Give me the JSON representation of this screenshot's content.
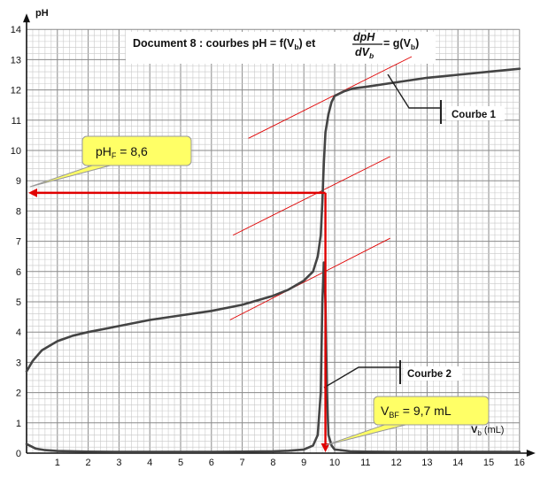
{
  "title": {
    "prefix": "Document 8 : courbes pH = f(V",
    "mid": ") et ",
    "frac_num": "dpH",
    "frac_den": "dV",
    "eq": " = g(V",
    "close": ")",
    "sub_b": "b"
  },
  "colors": {
    "grid_major": "#8a8a8a",
    "grid_minor": "#c8c8c8",
    "curve": "#444444",
    "red": "#e00000",
    "note_fill": "#ffff66",
    "note_border": "#999999"
  },
  "chart_data": {
    "type": "line",
    "xlabel": "Vb (mL)",
    "ylabel": "pH",
    "xlim": [
      0,
      16
    ],
    "ylim": [
      0,
      14
    ],
    "x_ticks": [
      1,
      2,
      3,
      4,
      5,
      6,
      7,
      8,
      9,
      10,
      11,
      12,
      13,
      14,
      15,
      16
    ],
    "y_ticks": [
      0,
      1,
      2,
      3,
      4,
      5,
      6,
      7,
      8,
      9,
      10,
      11,
      12,
      13,
      14
    ],
    "grid": true,
    "series": [
      {
        "name": "Courbe 1",
        "x": [
          0,
          0.2,
          0.5,
          1,
          1.5,
          2,
          3,
          4,
          5,
          6,
          7,
          8,
          8.5,
          9,
          9.3,
          9.45,
          9.55,
          9.6,
          9.65,
          9.7,
          9.8,
          9.9,
          10,
          10.3,
          10.6,
          11,
          12,
          13,
          14,
          15,
          16
        ],
        "y": [
          2.7,
          3.05,
          3.4,
          3.7,
          3.88,
          4.0,
          4.2,
          4.4,
          4.55,
          4.7,
          4.9,
          5.2,
          5.4,
          5.7,
          6.0,
          6.5,
          7.2,
          8.3,
          9.6,
          10.6,
          11.2,
          11.6,
          11.8,
          11.95,
          12.05,
          12.1,
          12.25,
          12.4,
          12.5,
          12.6,
          12.7
        ]
      },
      {
        "name": "Courbe 2",
        "x": [
          0,
          0.3,
          0.6,
          1,
          2,
          3,
          4,
          5,
          6,
          7,
          8,
          8.5,
          9,
          9.3,
          9.45,
          9.55,
          9.6,
          9.65,
          9.7,
          9.75,
          9.8,
          9.9,
          10,
          10.5,
          11,
          12,
          13,
          14,
          15,
          16
        ],
        "y": [
          0.3,
          0.15,
          0.1,
          0.07,
          0.05,
          0.04,
          0.04,
          0.04,
          0.04,
          0.05,
          0.06,
          0.08,
          0.12,
          0.25,
          0.6,
          2.0,
          5.0,
          6.3,
          5.0,
          2.0,
          0.6,
          0.25,
          0.12,
          0.06,
          0.05,
          0.04,
          0.04,
          0.04,
          0.04,
          0.04
        ]
      }
    ],
    "tangents": [
      {
        "x": [
          6.6,
          11.8
        ],
        "y": [
          4.4,
          7.1
        ]
      },
      {
        "x": [
          6.7,
          11.8
        ],
        "y": [
          7.2,
          9.8
        ]
      },
      {
        "x": [
          7.2,
          12.5
        ],
        "y": [
          10.4,
          13.1
        ]
      }
    ],
    "equivalence": {
      "x": 9.7,
      "y": 8.6
    },
    "annotations": {
      "curve1_label": "Courbe 1",
      "curve2_label": "Courbe 2",
      "ph_box": {
        "main": "pH",
        "sub": "F",
        "value": " = 8,6"
      },
      "v_box": {
        "main": "V",
        "sub": "BF",
        "value": " = 9,7 mL"
      }
    },
    "axis_labels": {
      "y_main": "pH",
      "x_main": "V",
      "x_sub": "b",
      "x_unit": " (mL)"
    }
  }
}
